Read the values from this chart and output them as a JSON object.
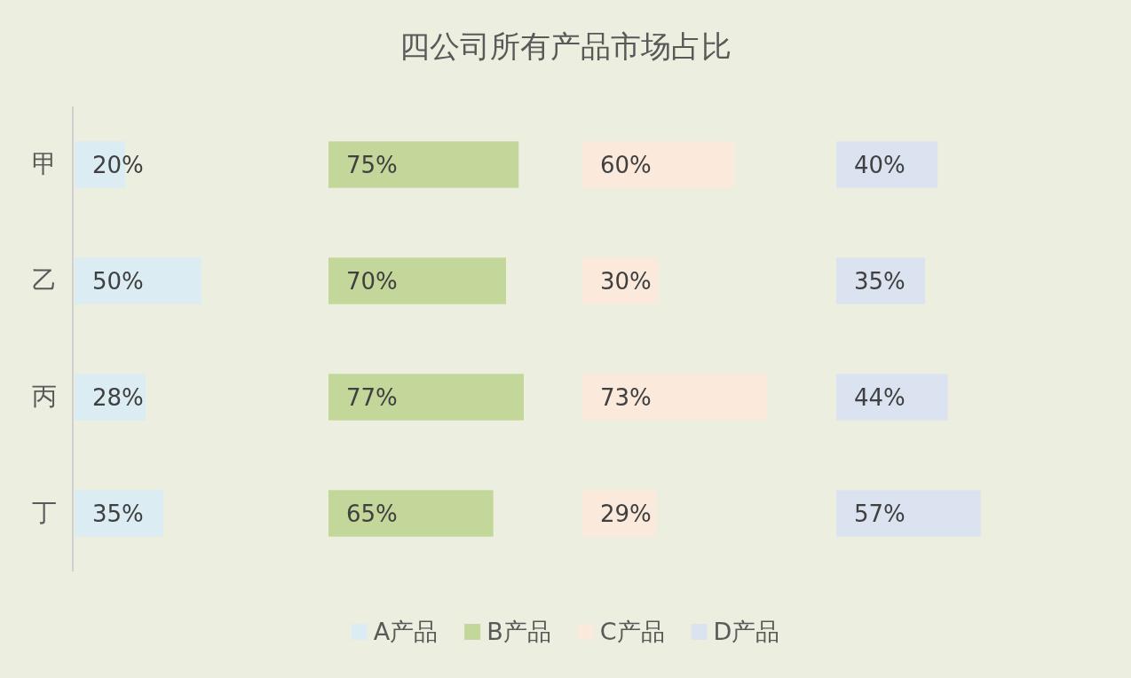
{
  "chart_data": [
    {
      "type": "bar",
      "orientation": "horizontal",
      "categories": [
        "甲",
        "乙",
        "丙",
        "丁"
      ],
      "legend": "bottom",
      "series": [
        {
          "name": "A产品",
          "color": "#dbecf3",
          "values": [
            20,
            50,
            28,
            35
          ],
          "value_labels": [
            "20%",
            "50%",
            "28%",
            "35%"
          ]
        }
      ]
    },
    {
      "type": "bar",
      "orientation": "horizontal",
      "title": "四公司所有产品市场占比",
      "categories": [
        null,
        null,
        null,
        null
      ],
      "legend": "bottom",
      "series": [
        {
          "name": "B产品",
          "color": "#c4d79b",
          "values": [
            75,
            70,
            77,
            65
          ],
          "value_labels": [
            "75%",
            "70%",
            "77%",
            "65%"
          ]
        }
      ]
    },
    {
      "type": "bar",
      "orientation": "horizontal",
      "categories": [
        null,
        null,
        null,
        null
      ],
      "legend": "bottom",
      "series": [
        {
          "name": "C产品",
          "color": "#fbe9dc",
          "values": [
            60,
            30,
            73,
            29
          ],
          "value_labels": [
            "60%",
            "30%",
            "73%",
            "29%"
          ]
        }
      ]
    },
    {
      "type": "bar",
      "orientation": "horizontal",
      "categories": [
        null,
        null,
        null,
        null
      ],
      "legend": "bottom",
      "series": [
        {
          "name": "D产品",
          "color": "#dbe3f1",
          "values": [
            40,
            35,
            44,
            57
          ],
          "value_labels": [
            "40%",
            "35%",
            "44%",
            "57%"
          ]
        }
      ]
    }
  ]
}
